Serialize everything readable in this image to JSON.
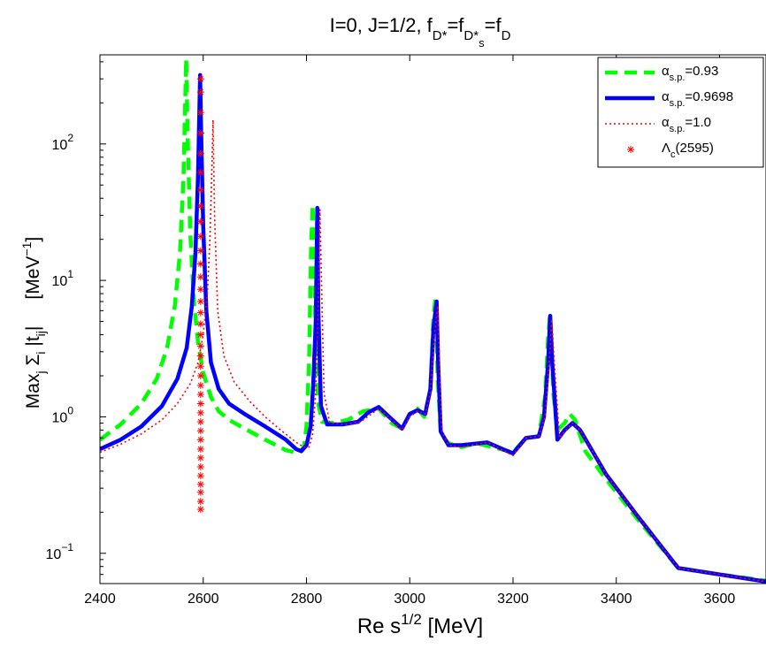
{
  "chart_data": {
    "type": "line",
    "title": "I=0, J=1/2, f_{D*}=f_{D*s}=f_D",
    "title_parts": {
      "prefix": "I=0, J=1/2, f",
      "sub1": "D*",
      "eq1": "=f",
      "sub2": "D*",
      "sub2_sub": "s",
      "eq2": "=f",
      "sub3": "D"
    },
    "xlabel": "Re s^{1/2} [MeV]",
    "xlabel_parts": {
      "main": "Re s",
      "sup": "1/2",
      "unit": " [MeV]"
    },
    "ylabel": "Max_j Σ_i |t_ij|    [MeV^-1]",
    "ylabel_parts": {
      "max": "Max",
      "j": "j",
      "sigma": " Σ",
      "i": "i",
      "t": " |t",
      "ij": "ij",
      "close": "|",
      "unit_open": "[MeV",
      "unit_sup": "−1",
      "unit_close": "]"
    },
    "xlim": [
      2400,
      3690
    ],
    "ylim": [
      0.06,
      450
    ],
    "yscale": "log",
    "x_ticks": [
      2400,
      2600,
      2800,
      3000,
      3200,
      3400,
      3600
    ],
    "y_ticks": [
      {
        "base": "10",
        "exp": "2",
        "value": 100
      },
      {
        "base": "10",
        "exp": "1",
        "value": 10
      },
      {
        "base": "10",
        "exp": "0",
        "value": 1
      },
      {
        "base": "10",
        "exp": "−1",
        "value": 0.1
      }
    ],
    "legend_position": "top-right",
    "series": [
      {
        "name": "α_{s.p.}=0.93",
        "legend_sym": "α",
        "legend_sub": "s.p.",
        "legend_val": "=0.93",
        "color": "#00ff00",
        "style": "dashed",
        "x": [
          2400,
          2440,
          2480,
          2510,
          2530,
          2545,
          2555,
          2562,
          2567,
          2570,
          2575,
          2582,
          2590,
          2600,
          2615,
          2630,
          2650,
          2680,
          2720,
          2760,
          2785,
          2795,
          2800,
          2805,
          2809,
          2812,
          2816,
          2822,
          2830,
          2850,
          2880,
          2910,
          2940,
          2965,
          2985,
          3000,
          3015,
          3028,
          3040,
          3046,
          3050,
          3054,
          3060,
          3075,
          3100,
          3130,
          3160,
          3200,
          3225,
          3250,
          3262,
          3268,
          3272,
          3278,
          3286,
          3300,
          3310,
          3320,
          3340,
          3380,
          3440,
          3520,
          3600,
          3690
        ],
        "y": [
          0.68,
          0.88,
          1.25,
          1.9,
          3.2,
          6.5,
          16,
          60,
          420,
          110,
          22,
          7,
          3.5,
          2.1,
          1.4,
          1.1,
          0.95,
          0.82,
          0.68,
          0.57,
          0.54,
          0.6,
          0.85,
          2.5,
          18,
          36,
          8,
          1.3,
          0.92,
          0.9,
          0.95,
          1.1,
          1.15,
          0.9,
          0.82,
          1.05,
          1.15,
          1.0,
          1.6,
          5.5,
          7.5,
          2.0,
          0.75,
          0.64,
          0.6,
          0.64,
          0.6,
          0.55,
          0.7,
          0.72,
          1.4,
          3.8,
          5.8,
          1.5,
          0.8,
          0.9,
          1.05,
          0.95,
          0.56,
          0.35,
          0.18,
          0.078,
          0.07,
          0.063
        ]
      },
      {
        "name": "α_{s.p.}=0.9698",
        "legend_sym": "α",
        "legend_sub": "s.p.",
        "legend_val": "=0.9698",
        "color": "#0000ff",
        "style": "solid",
        "x": [
          2400,
          2440,
          2480,
          2520,
          2550,
          2568,
          2578,
          2585,
          2590,
          2594,
          2596,
          2600,
          2606,
          2615,
          2630,
          2650,
          2680,
          2720,
          2760,
          2780,
          2790,
          2800,
          2808,
          2813,
          2818,
          2821,
          2823,
          2828,
          2840,
          2870,
          2900,
          2920,
          2940,
          2960,
          2985,
          3000,
          3015,
          3030,
          3040,
          3046,
          3052,
          3055,
          3060,
          3075,
          3100,
          3150,
          3180,
          3200,
          3225,
          3250,
          3260,
          3268,
          3272,
          3276,
          3286,
          3300,
          3315,
          3330,
          3380,
          3440,
          3520,
          3600,
          3690
        ],
        "y": [
          0.58,
          0.68,
          0.85,
          1.2,
          1.9,
          3.2,
          6.5,
          16,
          60,
          320,
          120,
          25,
          6,
          2.5,
          1.6,
          1.25,
          1.05,
          0.85,
          0.68,
          0.58,
          0.56,
          0.62,
          0.85,
          1.7,
          5,
          34,
          6,
          1.2,
          0.88,
          0.88,
          0.92,
          1.08,
          1.18,
          1.0,
          0.82,
          1.05,
          1.12,
          1.05,
          1.6,
          4.5,
          7.0,
          2.5,
          0.78,
          0.62,
          0.62,
          0.65,
          0.58,
          0.54,
          0.7,
          0.72,
          1.0,
          2.5,
          5.5,
          2.5,
          0.68,
          0.8,
          0.9,
          0.8,
          0.38,
          0.19,
          0.078,
          0.07,
          0.062
        ]
      },
      {
        "name": "α_{s.p.}=1.0",
        "legend_sym": "α",
        "legend_sub": "s.p.",
        "legend_val": "=1.0",
        "color": "#ff0000",
        "style": "dotted",
        "x": [
          2400,
          2440,
          2480,
          2520,
          2550,
          2575,
          2590,
          2600,
          2608,
          2613,
          2617,
          2619,
          2622,
          2628,
          2640,
          2660,
          2690,
          2720,
          2750,
          2780,
          2795,
          2805,
          2812,
          2818,
          2822,
          2826,
          2829,
          2834,
          2845,
          2875,
          2905,
          2940,
          2965,
          2985,
          3000,
          3015,
          3030,
          3040,
          3048,
          3054,
          3057,
          3062,
          3075,
          3100,
          3150,
          3200,
          3225,
          3250,
          3262,
          3270,
          3275,
          3280,
          3290,
          3300,
          3315,
          3330,
          3380,
          3440,
          3520,
          3600,
          3690
        ],
        "y": [
          0.55,
          0.63,
          0.75,
          0.95,
          1.25,
          1.75,
          2.5,
          4.0,
          8,
          20,
          70,
          150,
          30,
          6,
          2.8,
          1.8,
          1.3,
          1.0,
          0.8,
          0.65,
          0.6,
          0.6,
          0.75,
          1.5,
          5,
          33,
          10,
          1.5,
          0.9,
          0.88,
          0.92,
          1.15,
          0.95,
          0.8,
          1.0,
          1.1,
          1.05,
          1.5,
          4.0,
          6.5,
          3.0,
          0.8,
          0.62,
          0.6,
          0.65,
          0.52,
          0.7,
          0.72,
          1.0,
          2.5,
          5.2,
          2.5,
          0.7,
          0.78,
          0.9,
          0.8,
          0.38,
          0.19,
          0.078,
          0.07,
          0.062
        ]
      },
      {
        "name": "Λ_c(2595)",
        "legend_sym": "Λ",
        "legend_sub": "c",
        "legend_val": "(2595)",
        "color": "#ff0000",
        "style": "markers",
        "marker": "*",
        "x": 2595,
        "y": [
          0.21,
          0.24,
          0.28,
          0.32,
          0.37,
          0.43,
          0.5,
          0.58,
          0.68,
          0.79,
          0.92,
          1.07,
          1.25,
          1.46,
          1.7,
          2.0,
          2.35,
          2.8,
          3.3,
          4.0,
          4.8,
          5.8,
          7.0,
          8.6,
          10.6,
          13.2,
          16.5,
          21,
          27,
          35,
          46,
          62,
          85,
          120,
          170,
          240,
          300
        ]
      }
    ]
  }
}
